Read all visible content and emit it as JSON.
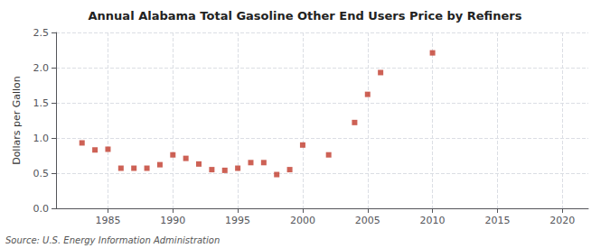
{
  "chart_data": {
    "type": "scatter",
    "title": "Annual Alabama Total Gasoline Other End Users Price by Refiners",
    "ylabel": "Dollars per Gallon",
    "annotations": [
      "Source: U.S. Energy Information Administration"
    ],
    "x": [
      1983,
      1984,
      1985,
      1986,
      1987,
      1988,
      1989,
      1990,
      1991,
      1992,
      1993,
      1994,
      1995,
      1996,
      1997,
      1998,
      1999,
      2000,
      2002,
      2004,
      2005,
      2006,
      2010
    ],
    "values": [
      0.93,
      0.83,
      0.84,
      0.57,
      0.57,
      0.57,
      0.62,
      0.76,
      0.71,
      0.63,
      0.55,
      0.54,
      0.57,
      0.65,
      0.65,
      0.48,
      0.55,
      0.9,
      0.76,
      1.22,
      1.62,
      1.93,
      2.21
    ],
    "color": "#c0392b",
    "marker": "square",
    "xlim": [
      1981,
      2022
    ],
    "xticks": [
      1985,
      1990,
      1995,
      2000,
      2005,
      2010,
      2015,
      2020
    ],
    "ylim": [
      0.0,
      2.5
    ],
    "yticks": [
      {
        "value": 0.0,
        "label": "0.0"
      },
      0.5,
      {
        "value": 1.0,
        "label": "1.0"
      },
      1.5,
      {
        "value": 2.0,
        "label": "2.0"
      },
      2.5
    ],
    "grid": true
  }
}
